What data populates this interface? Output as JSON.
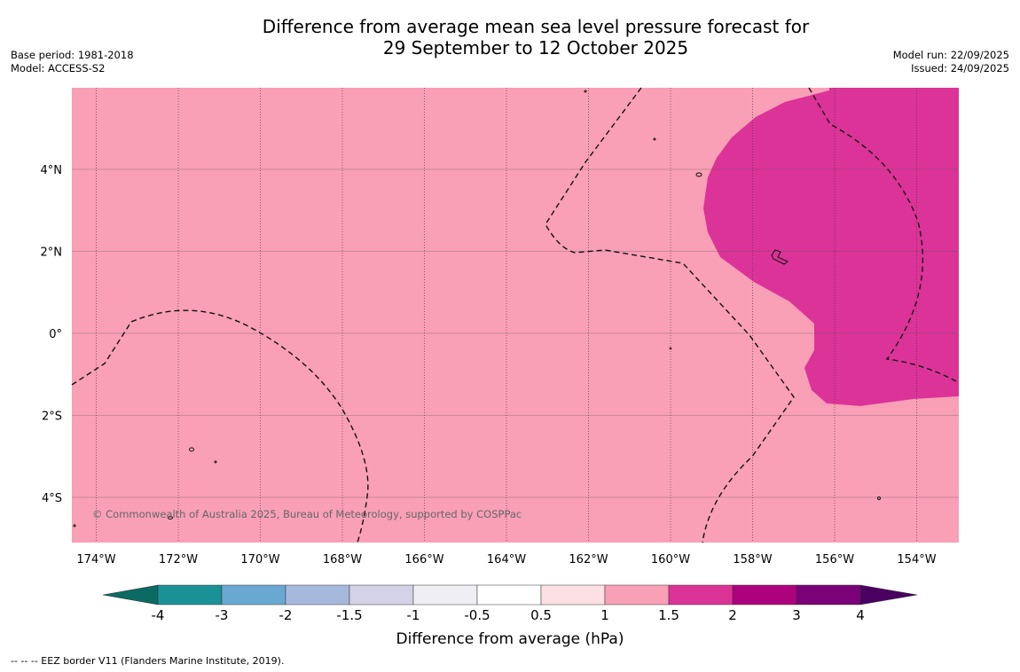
{
  "title": {
    "line1": "Difference from average mean sea level pressure forecast for",
    "line2": "29 September to 12 October 2025"
  },
  "meta_left": {
    "base_period": "Base period: 1981-2018",
    "model": "Model: ACCESS-S2"
  },
  "meta_right": {
    "model_run": "Model run: 22/09/2025",
    "issued": "Issued: 24/09/2025"
  },
  "map": {
    "x_ticks": [
      {
        "lon": -174,
        "label": "174°W"
      },
      {
        "lon": -172,
        "label": "172°W"
      },
      {
        "lon": -170,
        "label": "170°W"
      },
      {
        "lon": -168,
        "label": "168°W"
      },
      {
        "lon": -166,
        "label": "166°W"
      },
      {
        "lon": -164,
        "label": "164°W"
      },
      {
        "lon": -162,
        "label": "162°W"
      },
      {
        "lon": -160,
        "label": "160°W"
      },
      {
        "lon": -158,
        "label": "158°W"
      },
      {
        "lon": -156,
        "label": "156°W"
      },
      {
        "lon": -154,
        "label": "154°W"
      }
    ],
    "y_ticks": [
      {
        "lat": 4,
        "label": "4°N"
      },
      {
        "lat": 2,
        "label": "2°N"
      },
      {
        "lat": 0,
        "label": "0°"
      },
      {
        "lat": -2,
        "label": "2°S"
      },
      {
        "lat": -4,
        "label": "4°S"
      }
    ],
    "background_category": "1 to 1.5 hPa",
    "background_color": "#f99fb6",
    "anomaly_region": {
      "category": "1.5 to 2 hPa",
      "color": "#dc3398",
      "location": "north-east, around 156°W 2°N"
    },
    "copyright": "© Commonwealth of Australia 2025, Bureau of Meteorology, supported by COSPPac"
  },
  "colorbar": {
    "label": "Difference from average (hPa)",
    "under_color": "#0b6b62",
    "over_color": "#4a0060",
    "bins": [
      "#1a9196",
      "#69a9d1",
      "#a6b9dd",
      "#d3d2e7",
      "#efeef3",
      "#ffffff",
      "#fde0e3",
      "#f99fb6",
      "#dc3398",
      "#ae017e",
      "#7a0177"
    ],
    "tick_labels": [
      "-4",
      "-3",
      "-2",
      "-1.5",
      "-1",
      "-0.5",
      "0.5",
      "1",
      "1.5",
      "2",
      "3",
      "4"
    ]
  },
  "footnote": "-- -- -- EEZ border V11 (Flanders Marine Institute, 2019)."
}
